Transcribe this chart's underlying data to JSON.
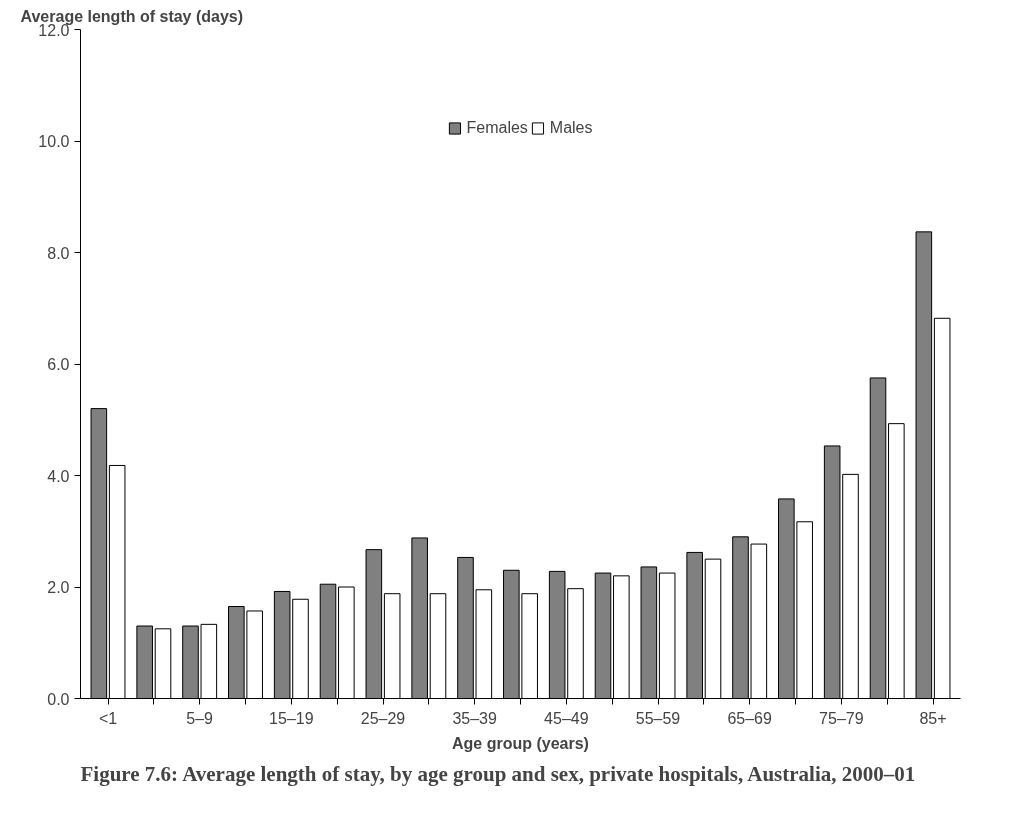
{
  "chart_data": {
    "type": "bar",
    "title": "Figure 7.6: Average length of stay, by age group and sex, private hospitals, Australia, 2000–01",
    "xlabel": "Age group (years)",
    "ylabel": "Average length of stay (days)",
    "categories": [
      "<1",
      null,
      "5–9",
      null,
      "15–19",
      null,
      "25–29",
      null,
      "35–39",
      null,
      "45–49",
      null,
      "55–59",
      null,
      "65–69",
      null,
      "75–79",
      null,
      "85+"
    ],
    "series": [
      {
        "name": "Females",
        "color": "#808080",
        "values": [
          5.2,
          1.3,
          1.3,
          1.65,
          1.92,
          2.05,
          2.67,
          2.88,
          2.53,
          2.3,
          2.28,
          2.25,
          2.36,
          2.62,
          2.9,
          3.58,
          4.53,
          5.75,
          8.37
        ]
      },
      {
        "name": "Males",
        "color": "#ffffff",
        "values": [
          4.18,
          1.25,
          1.33,
          1.57,
          1.78,
          2.0,
          1.88,
          1.88,
          1.95,
          1.88,
          1.97,
          2.2,
          2.25,
          2.5,
          2.77,
          3.17,
          4.02,
          4.93,
          6.82
        ]
      }
    ],
    "ylim": [
      0,
      12
    ],
    "yticks": [
      {
        "value": 0,
        "label": "0.0"
      },
      {
        "value": 2,
        "label": "2.0"
      },
      {
        "value": 4,
        "label": "4.0"
      },
      {
        "value": 6,
        "label": "6.0"
      },
      {
        "value": 8,
        "label": "8.0"
      },
      {
        "value": 10,
        "label": "10.0"
      },
      {
        "value": 12,
        "label": "12.0"
      }
    ],
    "grid": false,
    "legend": "top"
  }
}
